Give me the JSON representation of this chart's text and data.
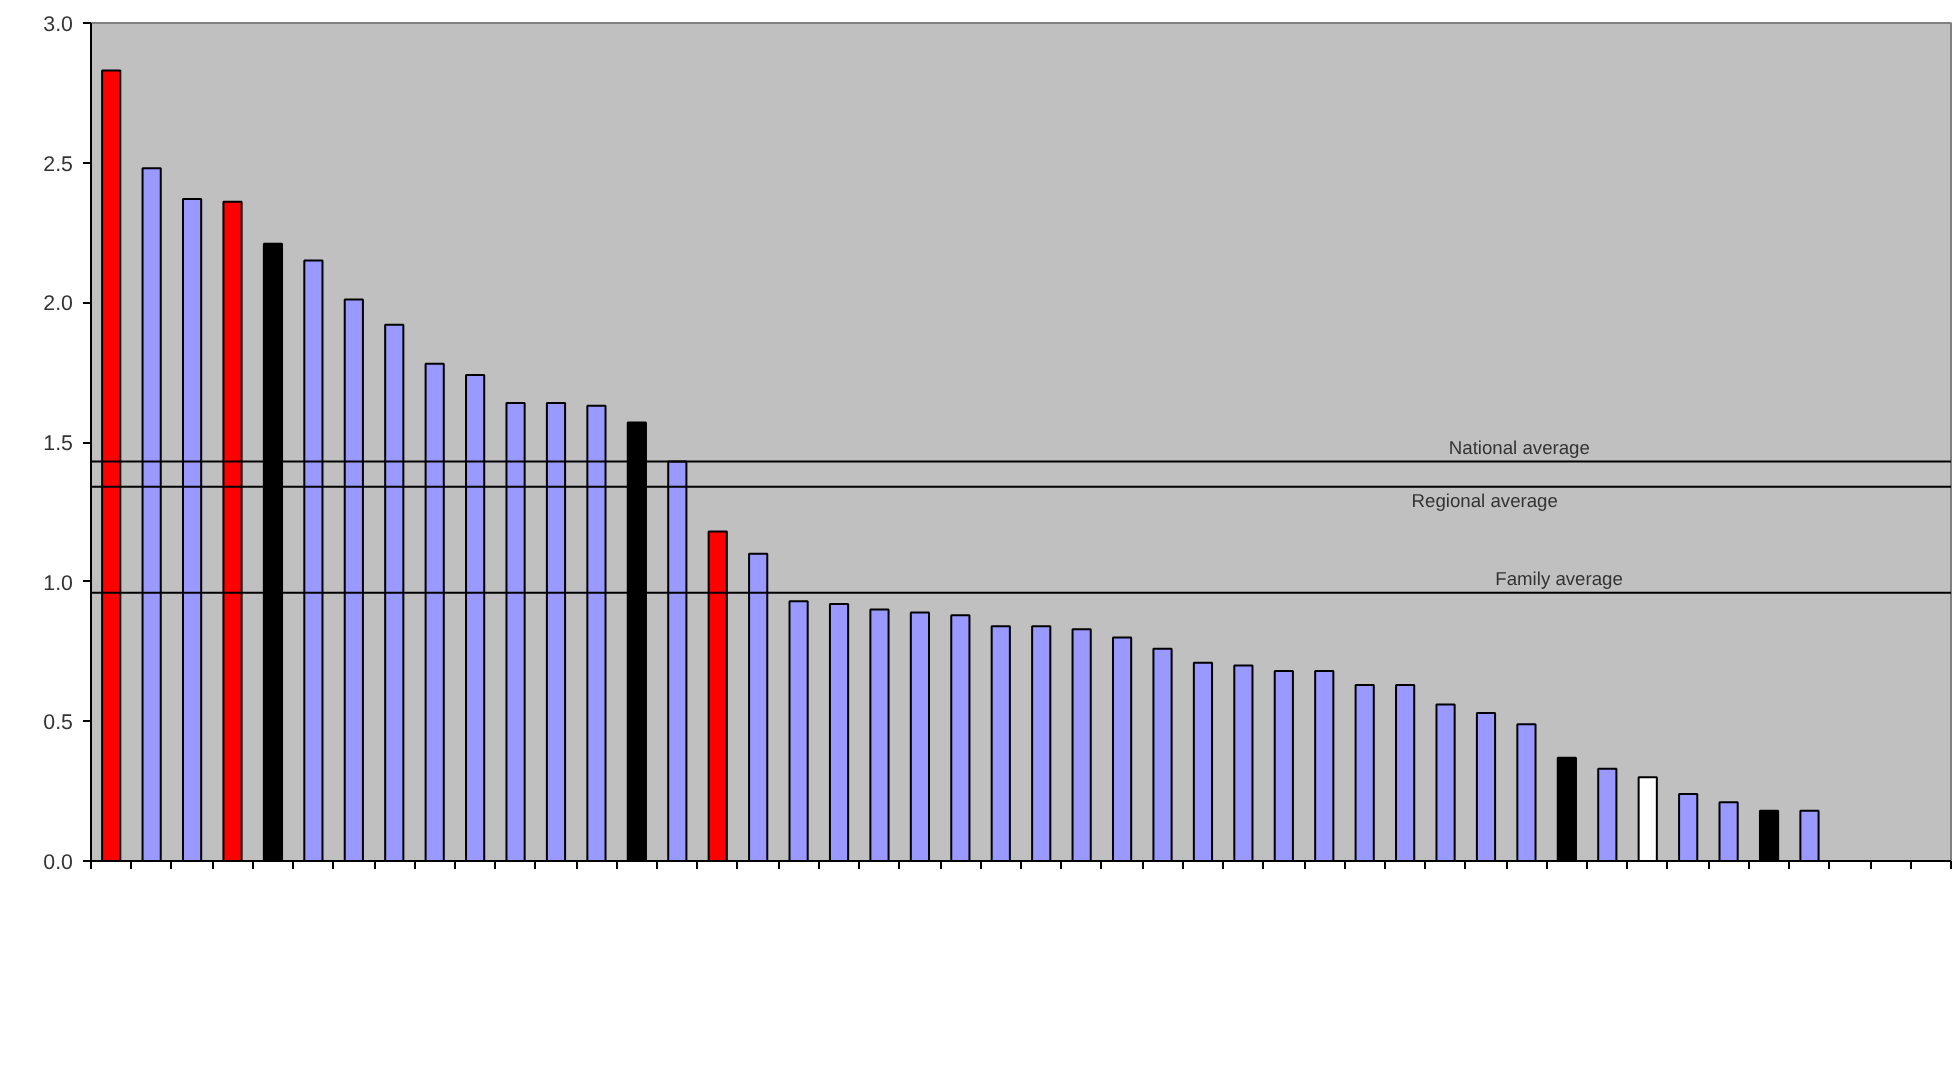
{
  "chart_data": {
    "type": "bar",
    "categories": [
      null,
      null,
      null,
      null,
      null,
      null,
      null,
      null,
      null,
      null,
      null,
      null,
      null,
      null,
      null,
      null,
      null,
      null,
      null,
      null,
      null,
      null,
      null,
      null,
      null,
      null,
      null,
      null,
      null,
      null,
      null,
      null,
      null,
      null,
      null,
      null,
      null,
      null,
      null,
      null,
      null,
      null,
      null,
      null,
      null,
      null
    ],
    "values": [
      2.83,
      2.48,
      2.37,
      2.36,
      2.21,
      2.15,
      2.01,
      1.92,
      1.78,
      1.74,
      1.64,
      1.64,
      1.63,
      1.57,
      1.43,
      1.18,
      1.1,
      0.93,
      0.92,
      0.9,
      0.89,
      0.88,
      0.84,
      0.84,
      0.83,
      0.8,
      0.76,
      0.71,
      0.7,
      0.68,
      0.68,
      0.63,
      0.63,
      0.56,
      0.53,
      0.49,
      0.37,
      0.33,
      0.3,
      0.24,
      0.21,
      0.18,
      0.18,
      null,
      null,
      null
    ],
    "colors": [
      "#ff0000",
      "#9999ff",
      "#9999ff",
      "#ff0000",
      "#000000",
      "#9999ff",
      "#9999ff",
      "#9999ff",
      "#9999ff",
      "#9999ff",
      "#9999ff",
      "#9999ff",
      "#9999ff",
      "#000000",
      "#9999ff",
      "#ff0000",
      "#9999ff",
      "#9999ff",
      "#9999ff",
      "#9999ff",
      "#9999ff",
      "#9999ff",
      "#9999ff",
      "#9999ff",
      "#9999ff",
      "#9999ff",
      "#9999ff",
      "#9999ff",
      "#9999ff",
      "#9999ff",
      "#9999ff",
      "#9999ff",
      "#9999ff",
      "#9999ff",
      "#9999ff",
      "#9999ff",
      "#000000",
      "#9999ff",
      "#ffffff",
      "#9999ff",
      "#9999ff",
      "#000000",
      "#9999ff",
      "#9999ff",
      "#9999ff",
      "#9999ff"
    ],
    "ylim": [
      0,
      3.0
    ],
    "yticks": [
      {
        "value": 0,
        "label": "0.0"
      },
      {
        "value": 0.5,
        "label": "0.5"
      },
      {
        "value": 1.0,
        "label": "1.0"
      },
      {
        "value": 1.5,
        "label": "1.5"
      },
      {
        "value": 2.0,
        "label": "2.0"
      },
      {
        "value": 2.5,
        "label": "2.5"
      },
      {
        "value": 3.0,
        "label": "3.0"
      }
    ],
    "ref_lines": [
      {
        "axis": "y",
        "value": 1.43,
        "label": "National average",
        "color": "#000000"
      },
      {
        "axis": "y",
        "value": 1.34,
        "label": "Regional average",
        "color": "#000000"
      },
      {
        "axis": "y",
        "value": 0.96,
        "label": "Family average",
        "color": "#000000"
      }
    ],
    "grid": false,
    "tick_labels": "y"
  }
}
